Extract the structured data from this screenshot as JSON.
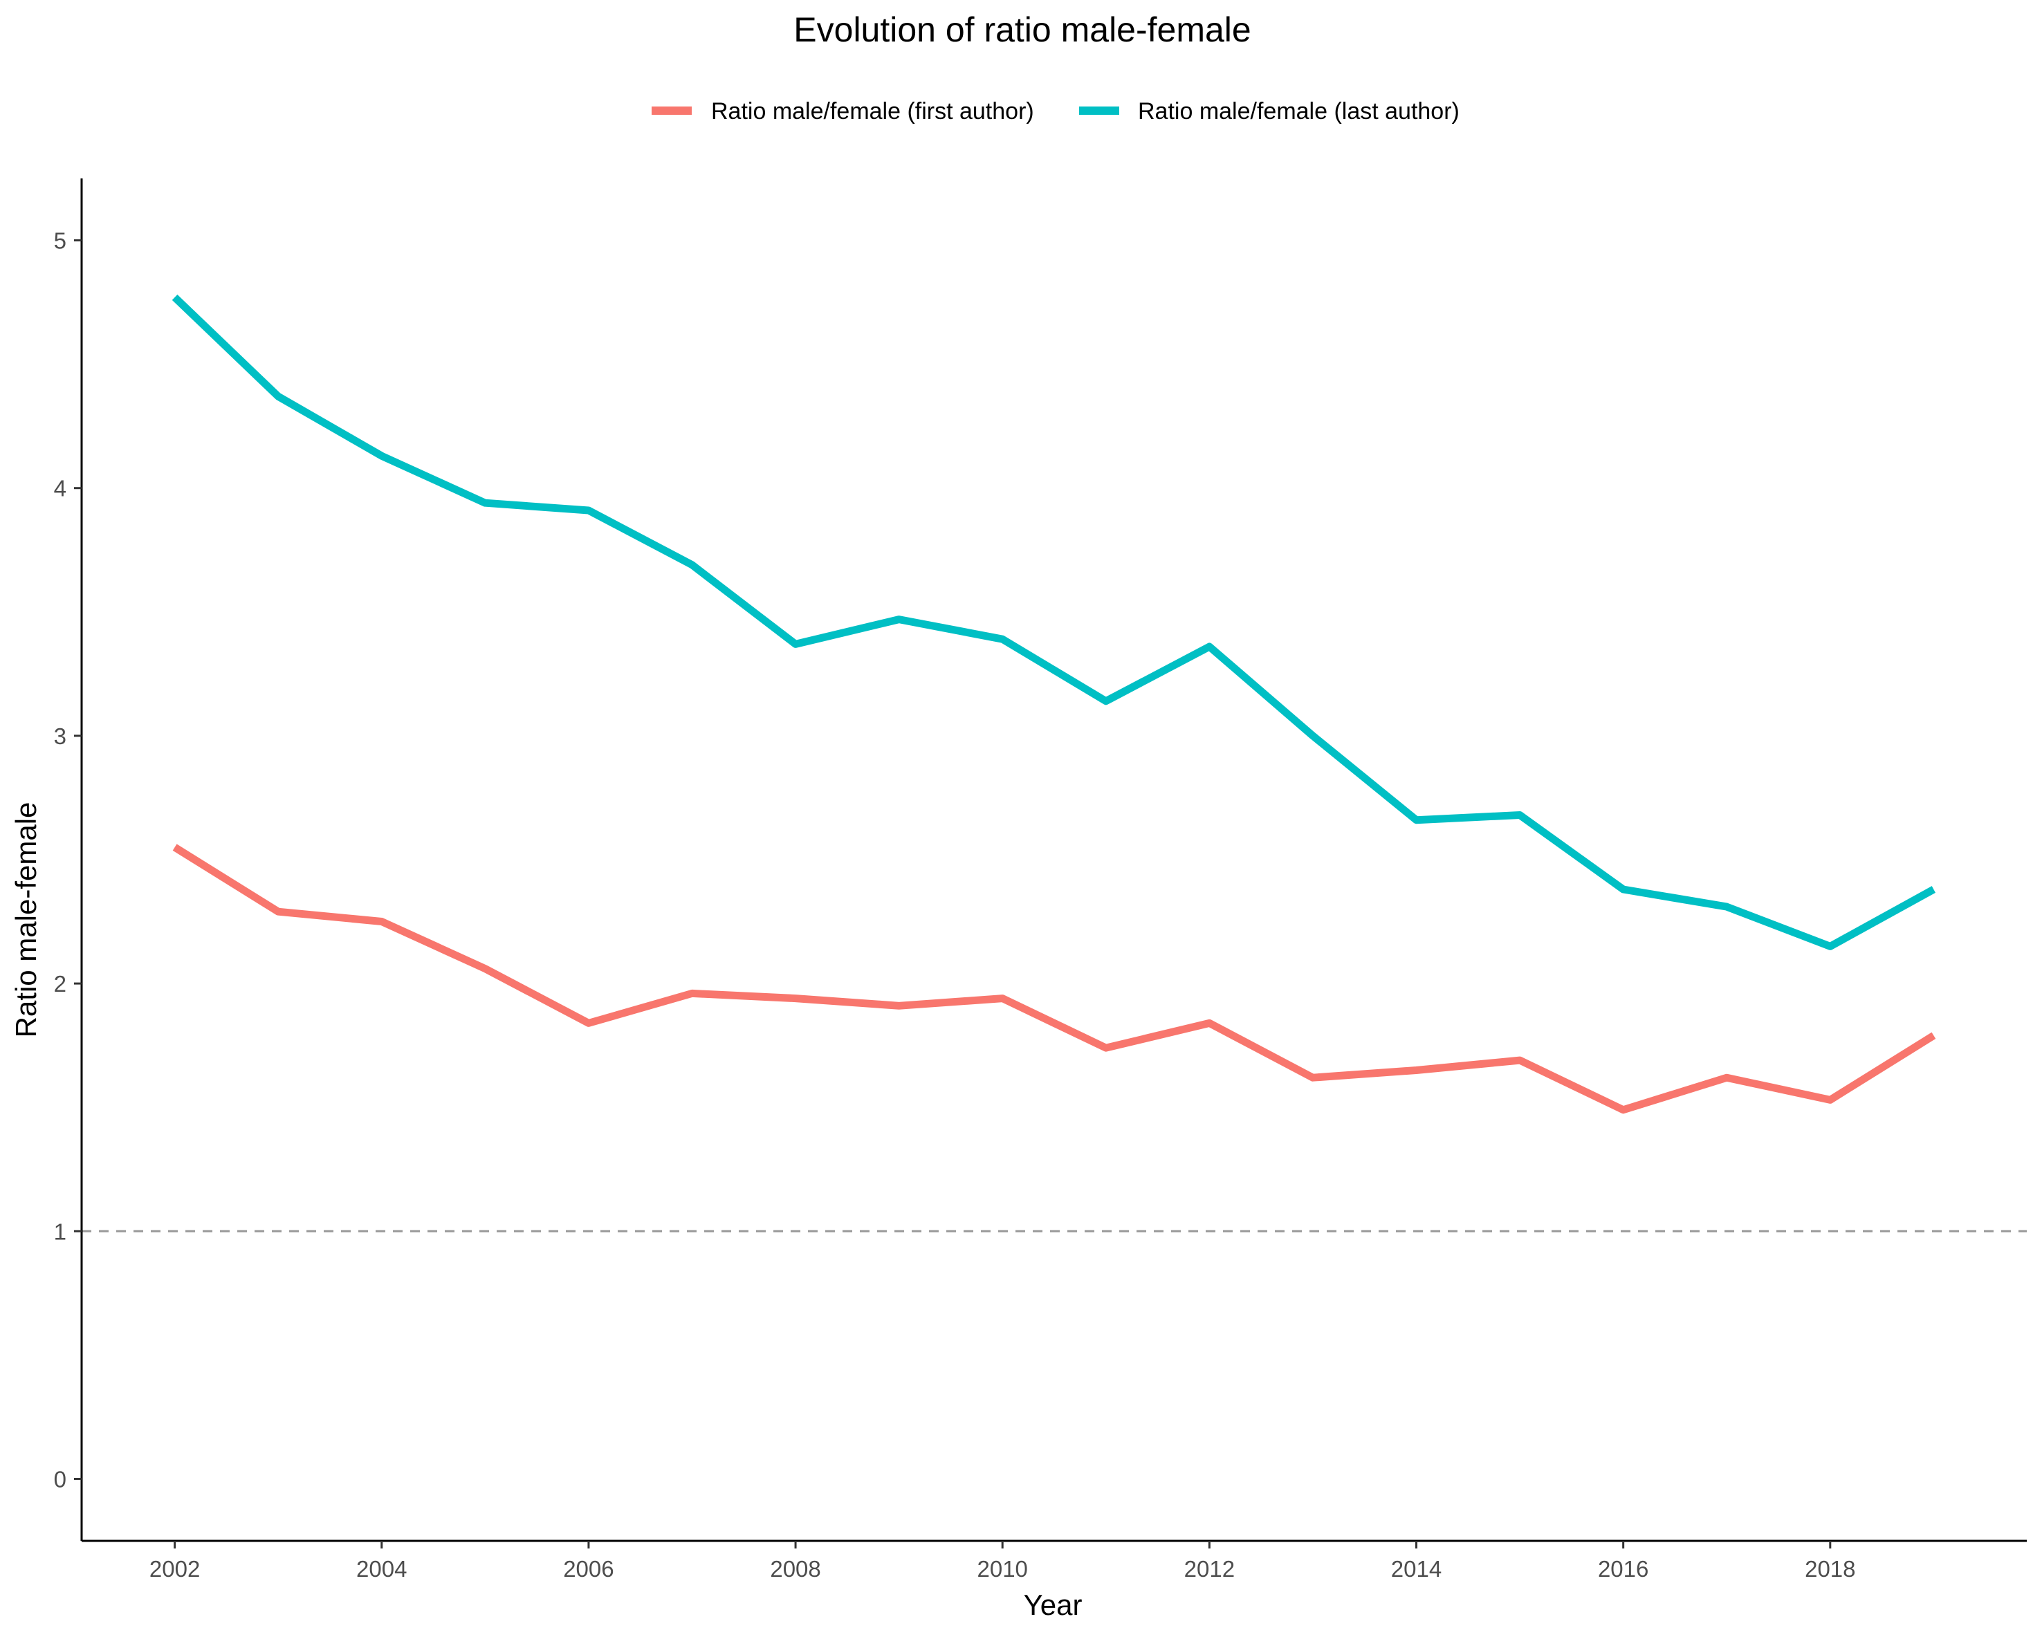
{
  "chart_data": {
    "type": "line",
    "title": "Evolution of ratio male-female",
    "xlabel": "Year",
    "ylabel": "Ratio male-female",
    "x": [
      2002,
      2003,
      2004,
      2005,
      2006,
      2007,
      2008,
      2009,
      2010,
      2011,
      2012,
      2013,
      2014,
      2015,
      2016,
      2017,
      2018,
      2019
    ],
    "series": [
      {
        "name": "Ratio male/female (first author)",
        "color": "#F8766D",
        "values": [
          2.55,
          2.29,
          2.25,
          2.06,
          1.84,
          1.96,
          1.94,
          1.91,
          1.94,
          1.74,
          1.84,
          1.62,
          1.65,
          1.69,
          1.49,
          1.62,
          1.53,
          1.79
        ]
      },
      {
        "name": "Ratio male/female (last author)",
        "color": "#00BFC4",
        "values": [
          4.77,
          4.37,
          4.13,
          3.94,
          3.91,
          3.69,
          3.37,
          3.47,
          3.39,
          3.14,
          3.36,
          3.0,
          2.66,
          2.68,
          2.38,
          2.31,
          2.15,
          2.38
        ]
      }
    ],
    "xticks": [
      2002,
      2004,
      2006,
      2008,
      2010,
      2012,
      2014,
      2016,
      2018
    ],
    "yticks": [
      0,
      1,
      2,
      3,
      4,
      5
    ],
    "xlim": [
      2001.1,
      2019.9
    ],
    "ylim": [
      -0.25,
      5.25
    ],
    "reference_line": {
      "y": 1,
      "style": "dashed",
      "color": "#999999"
    },
    "grid": false,
    "legend_position": "top"
  }
}
